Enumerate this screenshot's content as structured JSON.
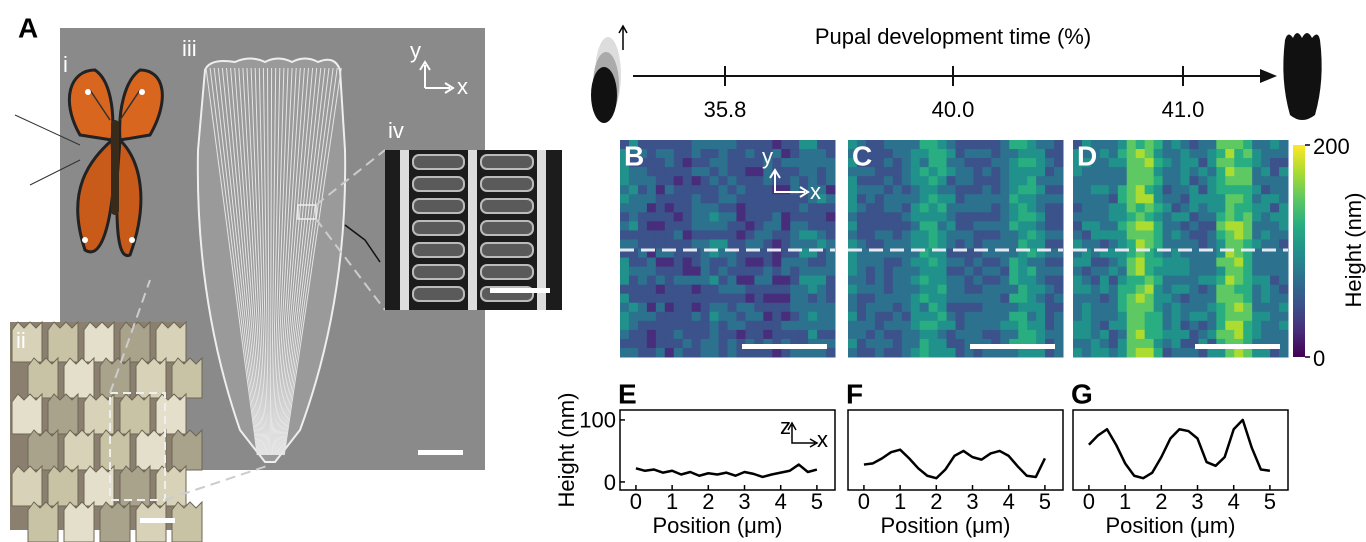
{
  "panel_a": {
    "label": "A",
    "sublabels": [
      "i",
      "ii",
      "iii",
      "iv"
    ],
    "axes": [
      "y",
      "x"
    ]
  },
  "timeline": {
    "title": "Pupal development time (%)",
    "ticks": [
      "35.8",
      "40.0",
      "41.0"
    ]
  },
  "heatmaps": [
    {
      "label": "B",
      "axes": [
        "y",
        "x"
      ]
    },
    {
      "label": "C"
    },
    {
      "label": "D"
    }
  ],
  "colorbar": {
    "label": "Height (nm)",
    "lim": [
      0,
      200
    ],
    "ticks": [
      0,
      200
    ]
  },
  "chart_data": [
    {
      "type": "line",
      "label": "E",
      "axes": [
        "z",
        "x"
      ],
      "y_label": "Height (nm)",
      "x_label": "Position (μm)",
      "color": "#000000",
      "x": [
        0,
        0.25,
        0.5,
        0.75,
        1,
        1.25,
        1.5,
        1.75,
        2,
        2.25,
        2.5,
        2.75,
        3,
        3.25,
        3.5,
        3.75,
        4,
        4.25,
        4.5,
        4.75,
        5
      ],
      "values": [
        22,
        18,
        20,
        15,
        18,
        12,
        16,
        10,
        14,
        12,
        15,
        10,
        16,
        13,
        8,
        12,
        15,
        18,
        28,
        16,
        20
      ],
      "xlim": [
        -0.44,
        5.5
      ],
      "ylim": [
        -13,
        116
      ],
      "xticks": [
        0,
        1,
        2,
        3,
        4,
        5
      ],
      "yticks": [
        0,
        100
      ]
    },
    {
      "type": "line",
      "label": "F",
      "x_label": "Position (μm)",
      "color": "#000000",
      "x": [
        0,
        0.25,
        0.5,
        0.75,
        1,
        1.25,
        1.5,
        1.75,
        2,
        2.25,
        2.5,
        2.75,
        3,
        3.25,
        3.5,
        3.75,
        4,
        4.25,
        4.5,
        4.75,
        5
      ],
      "values": [
        28,
        30,
        38,
        48,
        52,
        38,
        22,
        10,
        6,
        20,
        42,
        50,
        40,
        36,
        46,
        50,
        42,
        25,
        10,
        8,
        38
      ],
      "xlim": [
        -0.44,
        5.5
      ],
      "ylim": [
        -13,
        116
      ],
      "xticks": [
        0,
        1,
        2,
        3,
        4,
        5
      ]
    },
    {
      "type": "line",
      "label": "G",
      "x_label": "Position (μm)",
      "color": "#000000",
      "x": [
        0,
        0.25,
        0.5,
        0.75,
        1,
        1.25,
        1.5,
        1.75,
        2,
        2.25,
        2.5,
        2.75,
        3,
        3.25,
        3.5,
        3.75,
        4,
        4.25,
        4.5,
        4.75,
        5
      ],
      "values": [
        60,
        75,
        85,
        60,
        30,
        10,
        6,
        15,
        40,
        70,
        85,
        82,
        70,
        32,
        26,
        40,
        85,
        100,
        55,
        20,
        18
      ],
      "xlim": [
        -0.44,
        5.5
      ],
      "ylim": [
        -13,
        116
      ],
      "xticks": [
        0,
        1,
        2,
        3,
        4,
        5
      ]
    }
  ]
}
